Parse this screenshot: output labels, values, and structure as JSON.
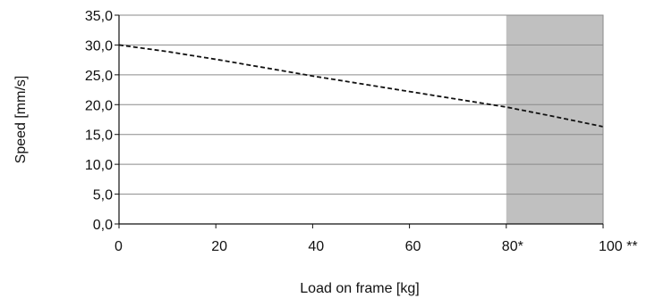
{
  "chart_data": {
    "type": "line",
    "title": "",
    "xlabel": "Load on frame [kg]",
    "ylabel": "Speed [mm/s]",
    "xlim": [
      0,
      100
    ],
    "ylim": [
      0,
      35
    ],
    "x_ticks": [
      {
        "value": 0,
        "label": "0"
      },
      {
        "value": 20,
        "label": "20"
      },
      {
        "value": 40,
        "label": "40"
      },
      {
        "value": 60,
        "label": "60"
      },
      {
        "value": 80,
        "label": "80*"
      },
      {
        "value": 100,
        "label": "100 **"
      }
    ],
    "y_ticks": [
      {
        "value": 0,
        "label": "0,0"
      },
      {
        "value": 5,
        "label": "5,0"
      },
      {
        "value": 10,
        "label": "10,0"
      },
      {
        "value": 15,
        "label": "15,0"
      },
      {
        "value": 20,
        "label": "20,0"
      },
      {
        "value": 25,
        "label": "25,0"
      },
      {
        "value": 30,
        "label": "30,0"
      },
      {
        "value": 35,
        "label": "35,0"
      }
    ],
    "grid": "horizontal",
    "legend": "none",
    "shaded_region": {
      "x_from": 80,
      "x_to": 100,
      "color": "#c0c0c0"
    },
    "series": [
      {
        "style": "dashed",
        "color": "#111111",
        "x": [
          0,
          10,
          20,
          30,
          40,
          50,
          60,
          70,
          80,
          90,
          100
        ],
        "y": [
          30.0,
          28.9,
          27.6,
          26.2,
          24.8,
          23.5,
          22.2,
          20.9,
          19.6,
          18.0,
          16.3
        ]
      }
    ]
  }
}
